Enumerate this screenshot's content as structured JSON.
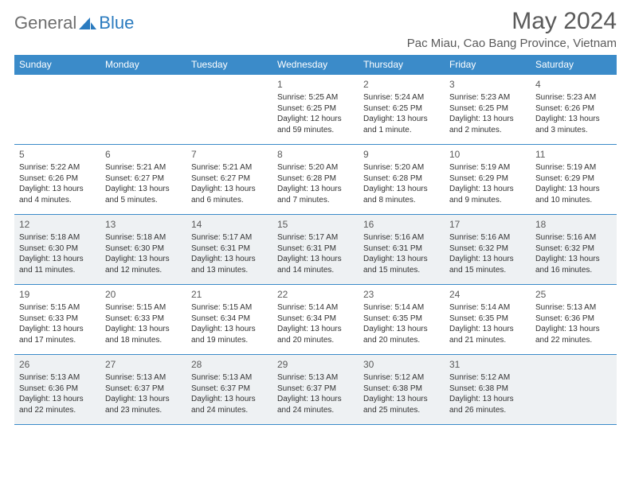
{
  "logo": {
    "text1": "General",
    "text2": "Blue"
  },
  "title": "May 2024",
  "location": "Pac Miau, Cao Bang Province, Vietnam",
  "colors": {
    "header_bg": "#3b8bc9",
    "header_text": "#ffffff",
    "rule": "#3b8bc9",
    "shade": "#eef1f3",
    "logo_gray": "#6e6e6e",
    "logo_blue": "#2b7bbf",
    "title_gray": "#5a5a5a",
    "body_text": "#333333"
  },
  "daynames": [
    "Sunday",
    "Monday",
    "Tuesday",
    "Wednesday",
    "Thursday",
    "Friday",
    "Saturday"
  ],
  "weeks": [
    {
      "shade": false,
      "cells": [
        null,
        null,
        null,
        {
          "n": "1",
          "sr": "Sunrise: 5:25 AM",
          "ss": "Sunset: 6:25 PM",
          "dl": "Daylight: 12 hours and 59 minutes."
        },
        {
          "n": "2",
          "sr": "Sunrise: 5:24 AM",
          "ss": "Sunset: 6:25 PM",
          "dl": "Daylight: 13 hours and 1 minute."
        },
        {
          "n": "3",
          "sr": "Sunrise: 5:23 AM",
          "ss": "Sunset: 6:25 PM",
          "dl": "Daylight: 13 hours and 2 minutes."
        },
        {
          "n": "4",
          "sr": "Sunrise: 5:23 AM",
          "ss": "Sunset: 6:26 PM",
          "dl": "Daylight: 13 hours and 3 minutes."
        }
      ]
    },
    {
      "shade": false,
      "cells": [
        {
          "n": "5",
          "sr": "Sunrise: 5:22 AM",
          "ss": "Sunset: 6:26 PM",
          "dl": "Daylight: 13 hours and 4 minutes."
        },
        {
          "n": "6",
          "sr": "Sunrise: 5:21 AM",
          "ss": "Sunset: 6:27 PM",
          "dl": "Daylight: 13 hours and 5 minutes."
        },
        {
          "n": "7",
          "sr": "Sunrise: 5:21 AM",
          "ss": "Sunset: 6:27 PM",
          "dl": "Daylight: 13 hours and 6 minutes."
        },
        {
          "n": "8",
          "sr": "Sunrise: 5:20 AM",
          "ss": "Sunset: 6:28 PM",
          "dl": "Daylight: 13 hours and 7 minutes."
        },
        {
          "n": "9",
          "sr": "Sunrise: 5:20 AM",
          "ss": "Sunset: 6:28 PM",
          "dl": "Daylight: 13 hours and 8 minutes."
        },
        {
          "n": "10",
          "sr": "Sunrise: 5:19 AM",
          "ss": "Sunset: 6:29 PM",
          "dl": "Daylight: 13 hours and 9 minutes."
        },
        {
          "n": "11",
          "sr": "Sunrise: 5:19 AM",
          "ss": "Sunset: 6:29 PM",
          "dl": "Daylight: 13 hours and 10 minutes."
        }
      ]
    },
    {
      "shade": true,
      "cells": [
        {
          "n": "12",
          "sr": "Sunrise: 5:18 AM",
          "ss": "Sunset: 6:30 PM",
          "dl": "Daylight: 13 hours and 11 minutes."
        },
        {
          "n": "13",
          "sr": "Sunrise: 5:18 AM",
          "ss": "Sunset: 6:30 PM",
          "dl": "Daylight: 13 hours and 12 minutes."
        },
        {
          "n": "14",
          "sr": "Sunrise: 5:17 AM",
          "ss": "Sunset: 6:31 PM",
          "dl": "Daylight: 13 hours and 13 minutes."
        },
        {
          "n": "15",
          "sr": "Sunrise: 5:17 AM",
          "ss": "Sunset: 6:31 PM",
          "dl": "Daylight: 13 hours and 14 minutes."
        },
        {
          "n": "16",
          "sr": "Sunrise: 5:16 AM",
          "ss": "Sunset: 6:31 PM",
          "dl": "Daylight: 13 hours and 15 minutes."
        },
        {
          "n": "17",
          "sr": "Sunrise: 5:16 AM",
          "ss": "Sunset: 6:32 PM",
          "dl": "Daylight: 13 hours and 15 minutes."
        },
        {
          "n": "18",
          "sr": "Sunrise: 5:16 AM",
          "ss": "Sunset: 6:32 PM",
          "dl": "Daylight: 13 hours and 16 minutes."
        }
      ]
    },
    {
      "shade": false,
      "cells": [
        {
          "n": "19",
          "sr": "Sunrise: 5:15 AM",
          "ss": "Sunset: 6:33 PM",
          "dl": "Daylight: 13 hours and 17 minutes."
        },
        {
          "n": "20",
          "sr": "Sunrise: 5:15 AM",
          "ss": "Sunset: 6:33 PM",
          "dl": "Daylight: 13 hours and 18 minutes."
        },
        {
          "n": "21",
          "sr": "Sunrise: 5:15 AM",
          "ss": "Sunset: 6:34 PM",
          "dl": "Daylight: 13 hours and 19 minutes."
        },
        {
          "n": "22",
          "sr": "Sunrise: 5:14 AM",
          "ss": "Sunset: 6:34 PM",
          "dl": "Daylight: 13 hours and 20 minutes."
        },
        {
          "n": "23",
          "sr": "Sunrise: 5:14 AM",
          "ss": "Sunset: 6:35 PM",
          "dl": "Daylight: 13 hours and 20 minutes."
        },
        {
          "n": "24",
          "sr": "Sunrise: 5:14 AM",
          "ss": "Sunset: 6:35 PM",
          "dl": "Daylight: 13 hours and 21 minutes."
        },
        {
          "n": "25",
          "sr": "Sunrise: 5:13 AM",
          "ss": "Sunset: 6:36 PM",
          "dl": "Daylight: 13 hours and 22 minutes."
        }
      ]
    },
    {
      "shade": true,
      "cells": [
        {
          "n": "26",
          "sr": "Sunrise: 5:13 AM",
          "ss": "Sunset: 6:36 PM",
          "dl": "Daylight: 13 hours and 22 minutes."
        },
        {
          "n": "27",
          "sr": "Sunrise: 5:13 AM",
          "ss": "Sunset: 6:37 PM",
          "dl": "Daylight: 13 hours and 23 minutes."
        },
        {
          "n": "28",
          "sr": "Sunrise: 5:13 AM",
          "ss": "Sunset: 6:37 PM",
          "dl": "Daylight: 13 hours and 24 minutes."
        },
        {
          "n": "29",
          "sr": "Sunrise: 5:13 AM",
          "ss": "Sunset: 6:37 PM",
          "dl": "Daylight: 13 hours and 24 minutes."
        },
        {
          "n": "30",
          "sr": "Sunrise: 5:12 AM",
          "ss": "Sunset: 6:38 PM",
          "dl": "Daylight: 13 hours and 25 minutes."
        },
        {
          "n": "31",
          "sr": "Sunrise: 5:12 AM",
          "ss": "Sunset: 6:38 PM",
          "dl": "Daylight: 13 hours and 26 minutes."
        },
        null
      ]
    }
  ]
}
